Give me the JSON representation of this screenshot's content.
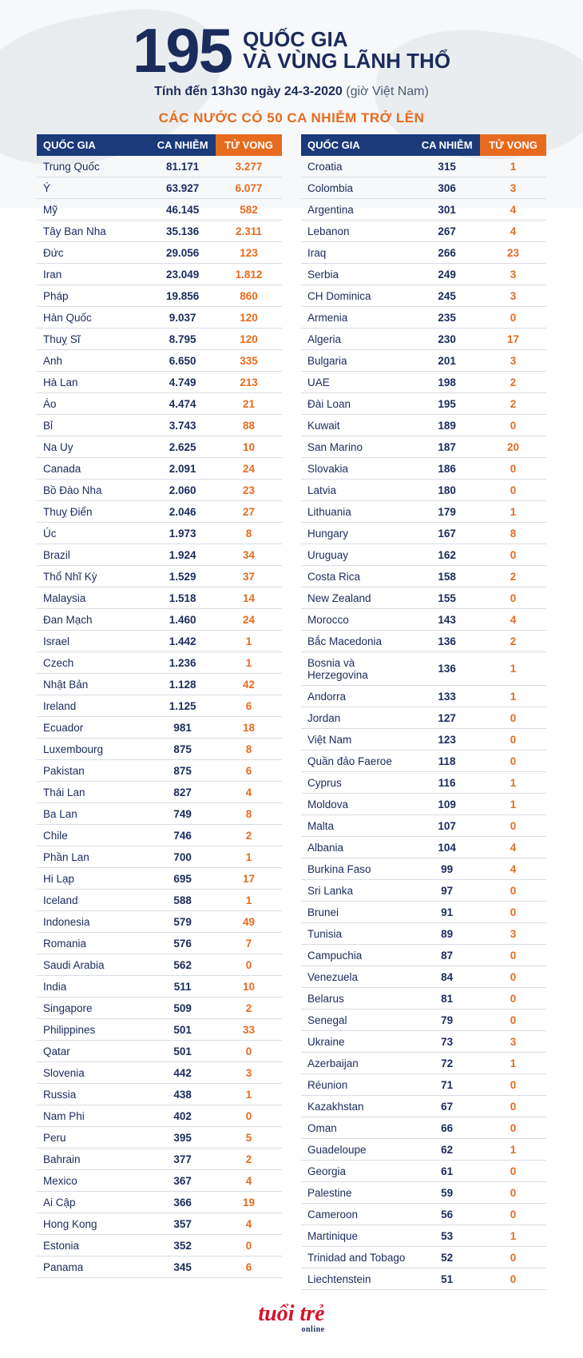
{
  "colors": {
    "navy": "#1a3a7a",
    "text_navy": "#1a2b5c",
    "orange": "#e76b1f",
    "row_border": "#d8dde4",
    "map_bg": "#e8ecef",
    "logo_red": "#d4122a",
    "white": "#ffffff"
  },
  "typography": {
    "big_num_fontsize": 78,
    "title_fontsize": 26,
    "sub_fontsize": 16,
    "section_title_fontsize": 17,
    "body_fontsize": 13.5,
    "header_cell_fontsize": 13
  },
  "header": {
    "big_number": "195",
    "title_line1": "QUỐC GIA",
    "title_line2": "VÀ VÙNG LÃNH THỔ",
    "sub_prefix": "Tính đến",
    "sub_time": "13h30 ngày 24-3-2020",
    "sub_note": "(giờ Việt Nam)"
  },
  "section_title": "CÁC NƯỚC CÓ 50 CA NHIỄM TRỞ LÊN",
  "table_headers": {
    "country": "QUỐC GIA",
    "cases": "CA NHIỄM",
    "deaths": "TỬ VONG"
  },
  "table": {
    "type": "table",
    "columns": [
      "QUỐC GIA",
      "CA NHIỄM",
      "TỬ VONG"
    ],
    "col_align": [
      "left",
      "center",
      "center"
    ],
    "col_colors": [
      "#1a2b5c",
      "#1a2b5c",
      "#e76b1f"
    ],
    "header_bg": [
      "#1a3a7a",
      "#1a3a7a",
      "#e76b1f"
    ],
    "rows_left": [
      [
        "Trung Quốc",
        "81.171",
        "3.277"
      ],
      [
        "Ý",
        "63.927",
        "6.077"
      ],
      [
        "Mỹ",
        "46.145",
        "582"
      ],
      [
        "Tây Ban Nha",
        "35.136",
        "2.311"
      ],
      [
        "Đức",
        "29.056",
        "123"
      ],
      [
        "Iran",
        "23.049",
        "1.812"
      ],
      [
        "Pháp",
        "19.856",
        "860"
      ],
      [
        "Hàn Quốc",
        "9.037",
        "120"
      ],
      [
        "Thuỵ Sĩ",
        "8.795",
        "120"
      ],
      [
        "Anh",
        "6.650",
        "335"
      ],
      [
        "Hà Lan",
        "4.749",
        "213"
      ],
      [
        "Áo",
        "4.474",
        "21"
      ],
      [
        "Bỉ",
        "3.743",
        "88"
      ],
      [
        "Na Uy",
        "2.625",
        "10"
      ],
      [
        "Canada",
        "2.091",
        "24"
      ],
      [
        "Bồ Đào Nha",
        "2.060",
        "23"
      ],
      [
        "Thuỵ Điển",
        "2.046",
        "27"
      ],
      [
        "Úc",
        "1.973",
        "8"
      ],
      [
        "Brazil",
        "1.924",
        "34"
      ],
      [
        "Thổ Nhĩ Kỳ",
        "1.529",
        "37"
      ],
      [
        "Malaysia",
        "1.518",
        "14"
      ],
      [
        "Đan Mạch",
        "1.460",
        "24"
      ],
      [
        "Israel",
        "1.442",
        "1"
      ],
      [
        "Czech",
        "1.236",
        "1"
      ],
      [
        "Nhật Bản",
        "1.128",
        "42"
      ],
      [
        "Ireland",
        "1.125",
        "6"
      ],
      [
        "Ecuador",
        "981",
        "18"
      ],
      [
        "Luxembourg",
        "875",
        "8"
      ],
      [
        "Pakistan",
        "875",
        "6"
      ],
      [
        "Thái Lan",
        "827",
        "4"
      ],
      [
        "Ba Lan",
        "749",
        "8"
      ],
      [
        "Chile",
        "746",
        "2"
      ],
      [
        "Phần Lan",
        "700",
        "1"
      ],
      [
        "Hi Lạp",
        "695",
        "17"
      ],
      [
        "Iceland",
        "588",
        "1"
      ],
      [
        "Indonesia",
        "579",
        "49"
      ],
      [
        "Romania",
        "576",
        "7"
      ],
      [
        "Saudi Arabia",
        "562",
        "0"
      ],
      [
        "India",
        "511",
        "10"
      ],
      [
        "Singapore",
        "509",
        "2"
      ],
      [
        "Philippines",
        "501",
        "33"
      ],
      [
        "Qatar",
        "501",
        "0"
      ],
      [
        "Slovenia",
        "442",
        "3"
      ],
      [
        "Russia",
        "438",
        "1"
      ],
      [
        "Nam Phi",
        "402",
        "0"
      ],
      [
        "Peru",
        "395",
        "5"
      ],
      [
        "Bahrain",
        "377",
        "2"
      ],
      [
        "Mexico",
        "367",
        "4"
      ],
      [
        "Ai Cập",
        "366",
        "19"
      ],
      [
        "Hong Kong",
        "357",
        "4"
      ],
      [
        "Estonia",
        "352",
        "0"
      ],
      [
        "Panama",
        "345",
        "6"
      ]
    ],
    "rows_right": [
      [
        "Croatia",
        "315",
        "1"
      ],
      [
        "Colombia",
        "306",
        "3"
      ],
      [
        "Argentina",
        "301",
        "4"
      ],
      [
        "Lebanon",
        "267",
        "4"
      ],
      [
        "Iraq",
        "266",
        "23"
      ],
      [
        "Serbia",
        "249",
        "3"
      ],
      [
        "CH Dominica",
        "245",
        "3"
      ],
      [
        "Armenia",
        "235",
        "0"
      ],
      [
        "Algeria",
        "230",
        "17"
      ],
      [
        "Bulgaria",
        "201",
        "3"
      ],
      [
        "UAE",
        "198",
        "2"
      ],
      [
        "Đài Loan",
        "195",
        "2"
      ],
      [
        "Kuwait",
        "189",
        "0"
      ],
      [
        "San Marino",
        "187",
        "20"
      ],
      [
        "Slovakia",
        "186",
        "0"
      ],
      [
        "Latvia",
        "180",
        "0"
      ],
      [
        "Lithuania",
        "179",
        "1"
      ],
      [
        "Hungary",
        "167",
        "8"
      ],
      [
        "Uruguay",
        "162",
        "0"
      ],
      [
        "Costa Rica",
        "158",
        "2"
      ],
      [
        "New Zealand",
        "155",
        "0"
      ],
      [
        "Morocco",
        "143",
        "4"
      ],
      [
        "Bắc Macedonia",
        "136",
        "2"
      ],
      [
        "Bosnia và Herzegovina",
        "136",
        "1"
      ],
      [
        "Andorra",
        "133",
        "1"
      ],
      [
        "Jordan",
        "127",
        "0"
      ],
      [
        "Việt Nam",
        "123",
        "0"
      ],
      [
        "Quần đảo Faeroe",
        "118",
        "0"
      ],
      [
        "Cyprus",
        "116",
        "1"
      ],
      [
        "Moldova",
        "109",
        "1"
      ],
      [
        "Malta",
        "107",
        "0"
      ],
      [
        "Albania",
        "104",
        "4"
      ],
      [
        "Burkina Faso",
        "99",
        "4"
      ],
      [
        "Sri Lanka",
        "97",
        "0"
      ],
      [
        "Brunei",
        "91",
        "0"
      ],
      [
        "Tunisia",
        "89",
        "3"
      ],
      [
        "Campuchia",
        "87",
        "0"
      ],
      [
        "Venezuela",
        "84",
        "0"
      ],
      [
        "Belarus",
        "81",
        "0"
      ],
      [
        "Senegal",
        "79",
        "0"
      ],
      [
        "Ukraine",
        "73",
        "3"
      ],
      [
        "Azerbaijan",
        "72",
        "1"
      ],
      [
        "Réunion",
        "71",
        "0"
      ],
      [
        "Kazakhstan",
        "67",
        "0"
      ],
      [
        "Oman",
        "66",
        "0"
      ],
      [
        "Guadeloupe",
        "62",
        "1"
      ],
      [
        "Georgia",
        "61",
        "0"
      ],
      [
        "Palestine",
        "59",
        "0"
      ],
      [
        "Cameroon",
        "56",
        "0"
      ],
      [
        "Martinique",
        "53",
        "1"
      ],
      [
        "Trinidad and Tobago",
        "52",
        "0"
      ],
      [
        "Liechtenstein",
        "51",
        "0"
      ]
    ]
  },
  "footer": {
    "logo_text": "tuổi trẻ",
    "logo_sub": "online"
  }
}
